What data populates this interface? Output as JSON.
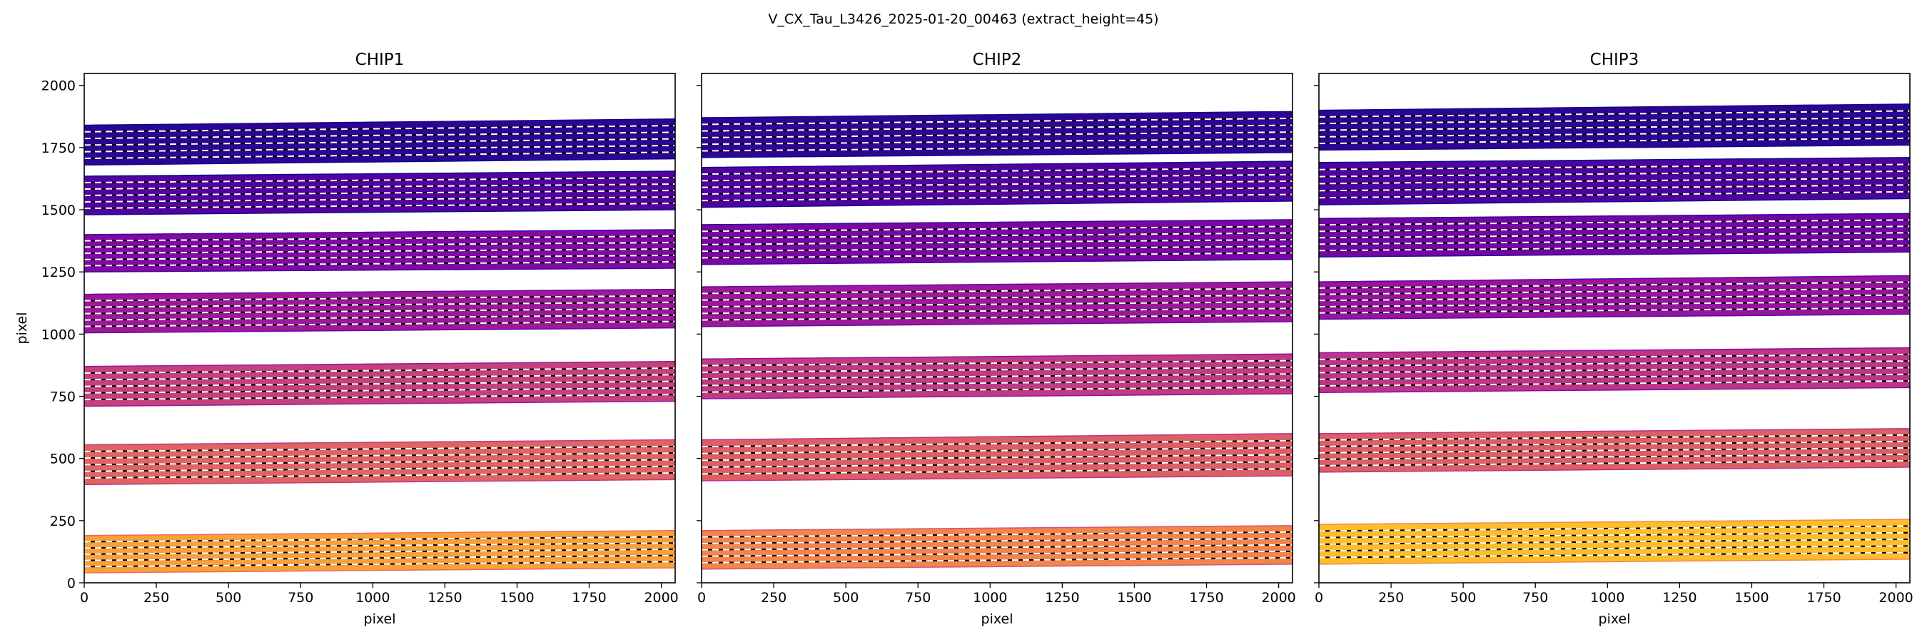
{
  "figure": {
    "title": "V_CX_Tau_L3426_2025-01-20_00463  (extract_height=45)"
  },
  "chart_data": [
    {
      "type": "heatmap",
      "title": "CHIP1",
      "xlabel": "pixel",
      "ylabel": "pixel",
      "xlim": [
        0,
        2048
      ],
      "ylim": [
        0,
        2048
      ],
      "x_ticks": [
        0,
        250,
        500,
        750,
        1000,
        1250,
        1500,
        1750,
        2000
      ],
      "y_ticks": [
        0,
        250,
        500,
        750,
        1000,
        1250,
        1500,
        1750,
        2000
      ],
      "orders": [
        {
          "bottom": [
            40,
            60
          ],
          "top": [
            190,
            210
          ],
          "tone": 0.78
        },
        {
          "bottom": [
            395,
            415
          ],
          "top": [
            555,
            575
          ],
          "tone": 0.6
        },
        {
          "bottom": [
            710,
            730
          ],
          "top": [
            870,
            890
          ],
          "tone": 0.48
        },
        {
          "bottom": [
            1005,
            1025
          ],
          "top": [
            1160,
            1180
          ],
          "tone": 0.34
        },
        {
          "bottom": [
            1250,
            1265
          ],
          "top": [
            1400,
            1420
          ],
          "tone": 0.26
        },
        {
          "bottom": [
            1480,
            1500
          ],
          "top": [
            1635,
            1655
          ],
          "tone": 0.14
        },
        {
          "bottom": [
            1680,
            1705
          ],
          "top": [
            1840,
            1865
          ],
          "tone": 0.06
        }
      ]
    },
    {
      "type": "heatmap",
      "title": "CHIP2",
      "xlabel": "pixel",
      "xlim": [
        0,
        2048
      ],
      "ylim": [
        0,
        2048
      ],
      "x_ticks": [
        0,
        250,
        500,
        750,
        1000,
        1250,
        1500,
        1750,
        2000
      ],
      "y_ticks": [
        0,
        250,
        500,
        750,
        1000,
        1250,
        1500,
        1750,
        2000
      ],
      "orders": [
        {
          "bottom": [
            55,
            75
          ],
          "top": [
            210,
            230
          ],
          "tone": 0.7
        },
        {
          "bottom": [
            410,
            430
          ],
          "top": [
            575,
            600
          ],
          "tone": 0.58
        },
        {
          "bottom": [
            740,
            760
          ],
          "top": [
            900,
            920
          ],
          "tone": 0.46
        },
        {
          "bottom": [
            1030,
            1050
          ],
          "top": [
            1190,
            1210
          ],
          "tone": 0.34
        },
        {
          "bottom": [
            1280,
            1300
          ],
          "top": [
            1440,
            1460
          ],
          "tone": 0.24
        },
        {
          "bottom": [
            1510,
            1535
          ],
          "top": [
            1670,
            1695
          ],
          "tone": 0.14
        },
        {
          "bottom": [
            1710,
            1730
          ],
          "top": [
            1870,
            1895
          ],
          "tone": 0.07
        }
      ]
    },
    {
      "type": "heatmap",
      "title": "CHIP3",
      "xlabel": "pixel",
      "xlim": [
        0,
        2048
      ],
      "ylim": [
        0,
        2048
      ],
      "x_ticks": [
        0,
        250,
        500,
        750,
        1000,
        1250,
        1500,
        1750,
        2000
      ],
      "y_ticks": [
        0,
        250,
        500,
        750,
        1000,
        1250,
        1500,
        1750,
        2000
      ],
      "orders": [
        {
          "bottom": [
            75,
            95
          ],
          "top": [
            235,
            255
          ],
          "tone": 0.86
        },
        {
          "bottom": [
            445,
            465
          ],
          "top": [
            600,
            620
          ],
          "tone": 0.58
        },
        {
          "bottom": [
            765,
            785
          ],
          "top": [
            925,
            945
          ],
          "tone": 0.44
        },
        {
          "bottom": [
            1060,
            1080
          ],
          "top": [
            1210,
            1235
          ],
          "tone": 0.32
        },
        {
          "bottom": [
            1310,
            1330
          ],
          "top": [
            1465,
            1485
          ],
          "tone": 0.22
        },
        {
          "bottom": [
            1520,
            1545
          ],
          "top": [
            1690,
            1710
          ],
          "tone": 0.13
        },
        {
          "bottom": [
            1740,
            1760
          ],
          "top": [
            1900,
            1925
          ],
          "tone": 0.06
        }
      ]
    }
  ]
}
